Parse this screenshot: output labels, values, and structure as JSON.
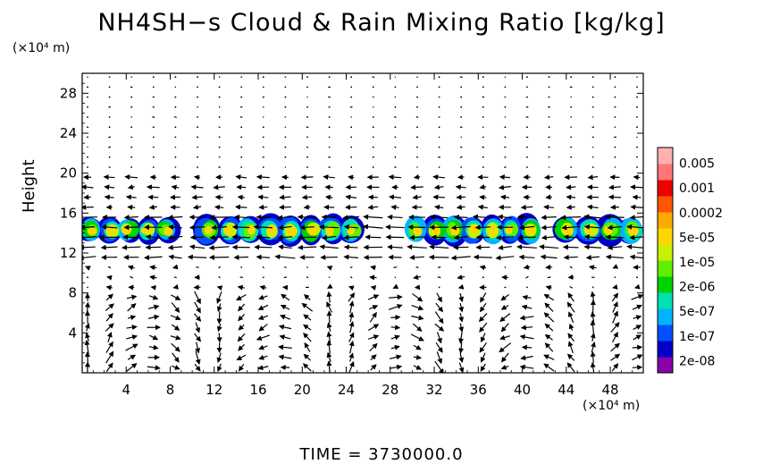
{
  "chart_data": {
    "type": "heatmap",
    "title": "NH4SH−s Cloud & Rain Mixing Ratio [kg/kg]",
    "ylabel": "Height",
    "xunit": "(×10⁴ m)",
    "yunit": "(×10⁴ m)",
    "xlim": [
      0,
      51
    ],
    "ylim": [
      0,
      30
    ],
    "xticks": [
      4,
      8,
      12,
      16,
      20,
      24,
      28,
      32,
      36,
      40,
      44,
      48
    ],
    "yticks": [
      4,
      8,
      12,
      16,
      20,
      24,
      28
    ],
    "grid": false,
    "legend_position": "right",
    "colorbar": {
      "labels": [
        "2e-08",
        "1e-07",
        "5e-07",
        "2e-06",
        "1e-05",
        "5e-05",
        "0.0002",
        "0.001",
        "0.005"
      ],
      "colors": [
        "#8b00a8",
        "#0000c8",
        "#0050ff",
        "#00b4ff",
        "#00e0b0",
        "#00d200",
        "#60ee00",
        "#c8f000",
        "#ffd700",
        "#ffaa00",
        "#ff5500",
        "#ee0000",
        "#ff7777",
        "#ffb0b0"
      ]
    },
    "cloud_bands": [
      {
        "x_start": 0,
        "x_end": 8.5,
        "y_bottom": 13.0,
        "y_top": 15.6
      },
      {
        "x_start": 10.5,
        "x_end": 25.5,
        "y_bottom": 12.8,
        "y_top": 15.8
      },
      {
        "x_start": 29.5,
        "x_end": 41.5,
        "y_bottom": 12.8,
        "y_top": 15.8
      },
      {
        "x_start": 43,
        "x_end": 51,
        "y_bottom": 12.8,
        "y_top": 15.8
      }
    ],
    "wind_vectors": "wind arrows over the full domain; strong westward flow near heights 12–16, weak flow above 20, convergent/updraft patterns below 8"
  },
  "footer": {
    "time_text": "TIME  =  3730000.0"
  }
}
